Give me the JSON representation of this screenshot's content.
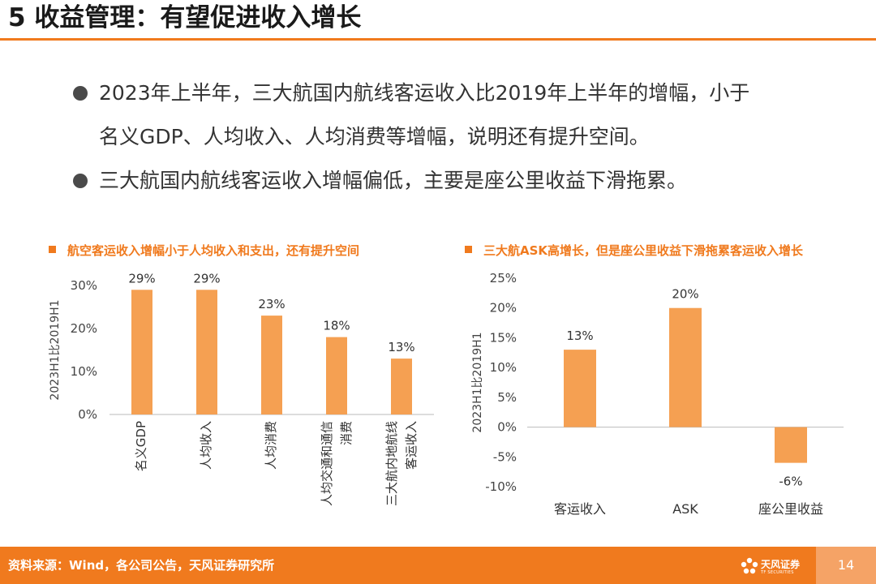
{
  "title": "5 收益管理：有望促进收入增长",
  "bullets": [
    {
      "line1": "2023年上半年，三大航国内航线客运收入比2019年上半年的增幅，小于",
      "line2": "名义GDP、人均收入、人均消费等增幅，说明还有提升空间。"
    },
    {
      "line1": "三大航国内航线客运收入增幅偏低，主要是座公里收益下滑拖累。",
      "line2": ""
    }
  ],
  "chart_data": [
    {
      "type": "bar",
      "title": "航空客运收入增幅小于人均收入和支出，还有提升空间",
      "ylabel": "2023H1比2019H1",
      "ylim": [
        0,
        30
      ],
      "yticks": [
        "30%",
        "20%",
        "10%",
        "0%"
      ],
      "categories": [
        [
          "名义GDP"
        ],
        [
          "人均收入"
        ],
        [
          "人均消费"
        ],
        [
          "人均交通和通信",
          "消费"
        ],
        [
          "三大航内地航线",
          "客运收入"
        ]
      ],
      "values": [
        29,
        29,
        23,
        18,
        13
      ],
      "data_labels": [
        "29%",
        "29%",
        "23%",
        "18%",
        "13%"
      ],
      "bar_color": "#f5a052"
    },
    {
      "type": "bar",
      "title": "三大航ASK高增长，但是座公里收益下滑拖累客运收入增长",
      "ylabel": "2023H1比2019H1",
      "ylim": [
        -10,
        25
      ],
      "yticks": [
        "25%",
        "20%",
        "15%",
        "10%",
        "5%",
        "0%",
        "-5%",
        "-10%"
      ],
      "categories": [
        "客运收入",
        "ASK",
        "座公里收益"
      ],
      "values": [
        13,
        20,
        -6
      ],
      "data_labels": [
        "13%",
        "20%",
        "-6%"
      ],
      "bar_color": "#f5a052"
    }
  ],
  "footer": {
    "source": "资料来源：Wind，各公司公告，天风证券研究所",
    "logo_cn": "天风证券",
    "logo_en": "TF SECURITIES",
    "page": "14"
  },
  "colors": {
    "accent": "#f07a1e",
    "bar": "#f5a052",
    "page_box": "#f5a366"
  }
}
